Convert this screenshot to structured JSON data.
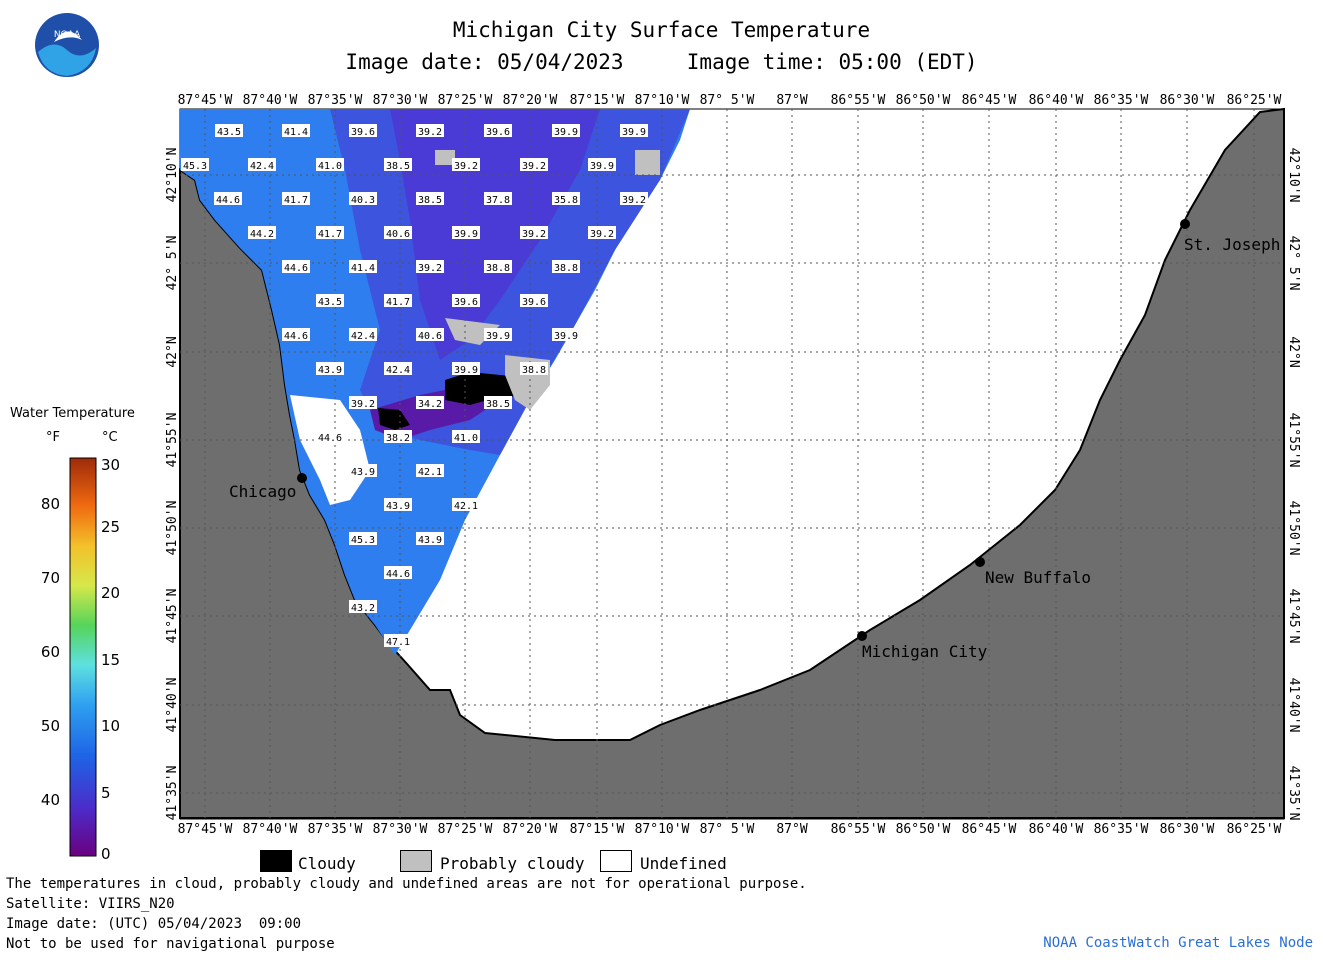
{
  "header": {
    "title": "Michigan City Surface Temperature",
    "subtitle": "Image date: 05/04/2023     Image time: 05:00 (EDT)"
  },
  "logo": {
    "text": "NOAA",
    "icon": "noaa-logo-icon"
  },
  "legend": {
    "title": "Water Temperature",
    "unit_f": "°F",
    "unit_c": "°C",
    "f_ticks": [
      "80",
      "70",
      "60",
      "50",
      "40"
    ],
    "c_ticks": [
      "30",
      "25",
      "20",
      "15",
      "10",
      "5",
      "0"
    ]
  },
  "axes": {
    "longitudes": [
      "87°45'W",
      "87°40'W",
      "87°35'W",
      "87°30'W",
      "87°25'W",
      "87°20'W",
      "87°15'W",
      "87°10'W",
      "87° 5'W",
      "87°W",
      "86°55'W",
      "86°50'W",
      "86°45'W",
      "86°40'W",
      "86°35'W",
      "86°30'W",
      "86°25'W"
    ],
    "latitudes": [
      "42°10'N",
      "42° 5'N",
      "42°N",
      "41°55'N",
      "41°50'N",
      "41°45'N",
      "41°40'N",
      "41°35'N"
    ]
  },
  "cities": [
    {
      "name": "Chicago"
    },
    {
      "name": "St. Joseph"
    },
    {
      "name": "New Buffalo"
    },
    {
      "name": "Michigan City"
    }
  ],
  "temperature_labels": [
    "43.5",
    "41.4",
    "39.6",
    "39.2",
    "39.6",
    "39.9",
    "39.9",
    "45.3",
    "42.4",
    "41.0",
    "38.5",
    "39.2",
    "39.2",
    "39.9",
    "44.6",
    "41.7",
    "40.3",
    "38.5",
    "37.8",
    "35.8",
    "39.2",
    "44.2",
    "41.7",
    "40.6",
    "39.9",
    "39.2",
    "39.2",
    "44.6",
    "41.4",
    "39.2",
    "38.8",
    "38.8",
    "43.5",
    "41.7",
    "39.6",
    "39.6",
    "44.6",
    "42.4",
    "40.6",
    "39.9",
    "39.9",
    "43.9",
    "42.4",
    "39.9",
    "38.8",
    "39.2",
    "34.2",
    "38.5",
    "44.6",
    "38.2",
    "41.0",
    "43.9",
    "42.1",
    "43.9",
    "42.1",
    "45.3",
    "43.9",
    "44.6",
    "43.2",
    "47.1"
  ],
  "key": {
    "cloudy": "Cloudy",
    "probably_cloudy": "Probably cloudy",
    "undefined": "Undefined",
    "colors": {
      "cloudy": "#000000",
      "probably_cloudy": "#c0c0c0",
      "undefined": "#ffffff",
      "land": "#6e6e6e"
    }
  },
  "footer": {
    "line1": "The temperatures in cloud, probably cloudy and undefined areas are not for operational purpose.",
    "line2": "Satellite: VIIRS_N20",
    "line3": "Image date: (UTC) 05/04/2023  09:00",
    "line4": "Not to be used for navigational purpose",
    "credit": "NOAA CoastWatch Great Lakes Node"
  }
}
